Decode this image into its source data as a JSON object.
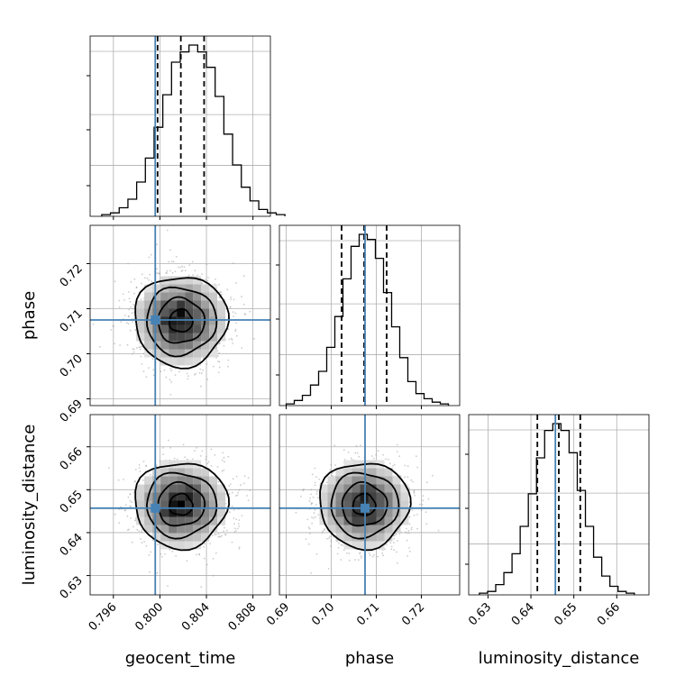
{
  "chart_data": {
    "type": "corner",
    "parameters": [
      "geocent_time",
      "phase",
      "luminosity_distance"
    ],
    "truth_values": {
      "geocent_time": 0.7996,
      "phase": 0.7075,
      "luminosity_distance": 0.6457
    },
    "truth_color": "#4682b4",
    "quantiles": {
      "geocent_time": [
        0.7998,
        0.8018,
        0.8038
      ],
      "phase": [
        0.7023,
        0.7073,
        0.7123
      ],
      "luminosity_distance": [
        0.6415,
        0.6465,
        0.6515
      ]
    },
    "ranges": {
      "geocent_time": [
        0.794,
        0.8095
      ],
      "phase": [
        0.6885,
        0.7285
      ],
      "luminosity_distance": [
        0.6255,
        0.6675
      ]
    },
    "ticks": {
      "geocent_time": [
        0.796,
        0.8,
        0.804,
        0.808
      ],
      "phase": [
        0.69,
        0.7,
        0.71,
        0.72
      ],
      "luminosity_distance": [
        0.63,
        0.64,
        0.65,
        0.66
      ]
    },
    "tick_labels": {
      "geocent_time": [
        "0.796",
        "0.800",
        "0.804",
        "0.808"
      ],
      "phase": [
        "0.69",
        "0.70",
        "0.71",
        "0.72"
      ],
      "luminosity_distance": [
        "0.63",
        "0.64",
        "0.65",
        "0.66"
      ]
    },
    "histograms": {
      "geocent_time": {
        "edges_start": 0.795,
        "bin_width": 0.00075,
        "counts": [
          1,
          2,
          5,
          10,
          20,
          34,
          52,
          71,
          90,
          96,
          100,
          96,
          87,
          70,
          48,
          30,
          17,
          9,
          4,
          2,
          1
        ]
      },
      "phase": {
        "edges_start": 0.69,
        "bin_width": 0.0018,
        "counts": [
          1,
          3,
          6,
          12,
          20,
          34,
          52,
          74,
          93,
          100,
          97,
          86,
          66,
          46,
          28,
          14,
          7,
          4,
          2,
          1
        ]
      },
      "luminosity_distance": {
        "edges_start": 0.628,
        "bin_width": 0.0019,
        "counts": [
          1,
          2,
          6,
          13,
          24,
          40,
          59,
          80,
          96,
          100,
          96,
          83,
          61,
          40,
          22,
          11,
          5,
          2,
          1
        ]
      }
    },
    "grid": true
  }
}
